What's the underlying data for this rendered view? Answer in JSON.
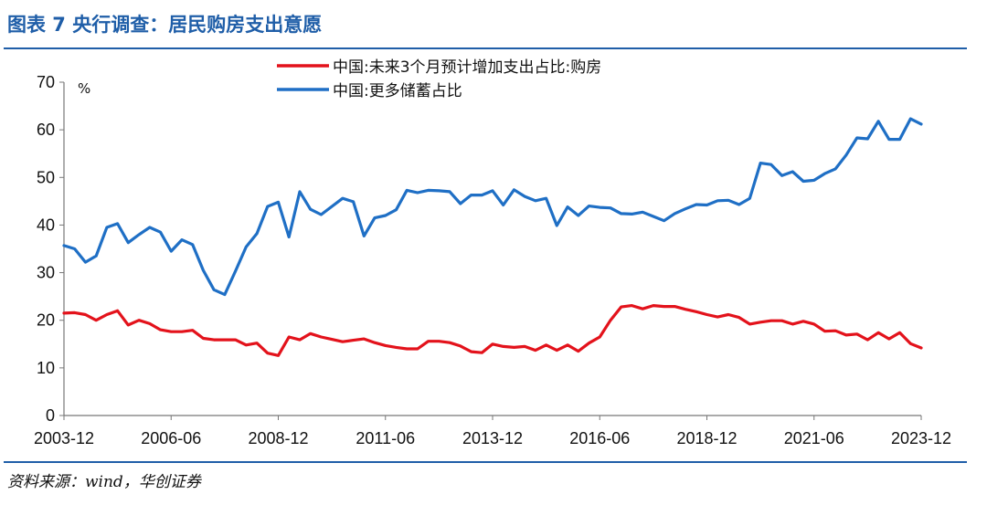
{
  "figure": {
    "title": "图表 7   央行调查：居民购房支出意愿",
    "source": "资料来源：wind，华创证券"
  },
  "colors": {
    "title_blue": "#1f5ea8",
    "rule_blue": "#1f5ea8",
    "series_red": "#e3121b",
    "series_blue": "#1f6fc5"
  },
  "chart_data": {
    "type": "line",
    "title": "",
    "xlabel": "",
    "ylabel": "%",
    "ylim": [
      0,
      70
    ],
    "yticks": [
      0,
      10,
      20,
      30,
      40,
      50,
      60,
      70
    ],
    "x_tick_labels": [
      "2003-12",
      "2006-06",
      "2008-12",
      "2011-06",
      "2013-12",
      "2016-06",
      "2018-12",
      "2021-06",
      "2023-12"
    ],
    "grid": false,
    "legend_position": "top",
    "x_start": "2003-12",
    "x_end": "2023-12",
    "series": [
      {
        "name": "中国:未来3个月预计增加支出占比:购房",
        "color": "#e3121b",
        "points": [
          [
            "2003-12",
            21.5
          ],
          [
            "2004-03",
            21.6
          ],
          [
            "2004-06",
            21.2
          ],
          [
            "2004-09",
            20.0
          ],
          [
            "2004-12",
            21.2
          ],
          [
            "2005-03",
            22.0
          ],
          [
            "2005-06",
            19.0
          ],
          [
            "2005-09",
            20.0
          ],
          [
            "2005-12",
            19.3
          ],
          [
            "2006-03",
            18.0
          ],
          [
            "2006-06",
            17.6
          ],
          [
            "2006-09",
            17.6
          ],
          [
            "2006-12",
            17.9
          ],
          [
            "2007-03",
            16.2
          ],
          [
            "2007-06",
            15.9
          ],
          [
            "2007-09",
            15.9
          ],
          [
            "2007-12",
            15.9
          ],
          [
            "2008-03",
            14.8
          ],
          [
            "2008-06",
            15.2
          ],
          [
            "2008-09",
            13.1
          ],
          [
            "2008-12",
            12.6
          ],
          [
            "2009-03",
            16.5
          ],
          [
            "2009-06",
            15.9
          ],
          [
            "2009-09",
            17.2
          ],
          [
            "2009-12",
            16.5
          ],
          [
            "2010-03",
            16.0
          ],
          [
            "2010-06",
            15.5
          ],
          [
            "2010-09",
            15.8
          ],
          [
            "2010-12",
            16.1
          ],
          [
            "2011-03",
            15.3
          ],
          [
            "2011-06",
            14.7
          ],
          [
            "2011-09",
            14.3
          ],
          [
            "2011-12",
            14.0
          ],
          [
            "2012-03",
            14.0
          ],
          [
            "2012-06",
            15.6
          ],
          [
            "2012-09",
            15.6
          ],
          [
            "2012-12",
            15.3
          ],
          [
            "2013-03",
            14.6
          ],
          [
            "2013-06",
            13.4
          ],
          [
            "2013-09",
            13.2
          ],
          [
            "2013-12",
            15.0
          ],
          [
            "2014-03",
            14.5
          ],
          [
            "2014-06",
            14.3
          ],
          [
            "2014-09",
            14.5
          ],
          [
            "2014-12",
            13.7
          ],
          [
            "2015-03",
            14.8
          ],
          [
            "2015-06",
            13.7
          ],
          [
            "2015-09",
            14.8
          ],
          [
            "2015-12",
            13.5
          ],
          [
            "2016-03",
            15.2
          ],
          [
            "2016-06",
            16.5
          ],
          [
            "2016-09",
            20.0
          ],
          [
            "2016-12",
            22.8
          ],
          [
            "2017-03",
            23.1
          ],
          [
            "2017-06",
            22.4
          ],
          [
            "2017-09",
            23.1
          ],
          [
            "2017-12",
            22.9
          ],
          [
            "2018-03",
            22.9
          ],
          [
            "2018-06",
            22.3
          ],
          [
            "2018-09",
            21.8
          ],
          [
            "2018-12",
            21.2
          ],
          [
            "2019-03",
            20.7
          ],
          [
            "2019-06",
            21.2
          ],
          [
            "2019-09",
            20.6
          ],
          [
            "2019-12",
            19.2
          ],
          [
            "2020-03",
            19.6
          ],
          [
            "2020-06",
            19.9
          ],
          [
            "2020-09",
            19.9
          ],
          [
            "2020-12",
            19.2
          ],
          [
            "2021-03",
            19.8
          ],
          [
            "2021-06",
            19.2
          ],
          [
            "2021-09",
            17.7
          ],
          [
            "2021-12",
            17.8
          ],
          [
            "2022-03",
            16.9
          ],
          [
            "2022-06",
            17.1
          ],
          [
            "2022-09",
            15.9
          ],
          [
            "2022-12",
            17.4
          ],
          [
            "2023-03",
            16.1
          ],
          [
            "2023-06",
            17.4
          ],
          [
            "2023-09",
            15.1
          ],
          [
            "2023-12",
            14.2
          ]
        ]
      },
      {
        "name": "中国:更多储蓄占比",
        "color": "#1f6fc5",
        "points": [
          [
            "2003-12",
            35.7
          ],
          [
            "2004-03",
            35.0
          ],
          [
            "2004-06",
            32.2
          ],
          [
            "2004-09",
            33.5
          ],
          [
            "2004-12",
            39.5
          ],
          [
            "2005-03",
            40.3
          ],
          [
            "2005-06",
            36.3
          ],
          [
            "2005-09",
            38.0
          ],
          [
            "2005-12",
            39.5
          ],
          [
            "2006-03",
            38.5
          ],
          [
            "2006-06",
            34.5
          ],
          [
            "2006-09",
            36.9
          ],
          [
            "2006-12",
            35.9
          ],
          [
            "2007-03",
            30.5
          ],
          [
            "2007-06",
            26.4
          ],
          [
            "2007-09",
            25.4
          ],
          [
            "2007-12",
            30.3
          ],
          [
            "2008-03",
            35.4
          ],
          [
            "2008-06",
            38.2
          ],
          [
            "2008-09",
            43.9
          ],
          [
            "2008-12",
            44.8
          ],
          [
            "2009-03",
            37.5
          ],
          [
            "2009-06",
            47.0
          ],
          [
            "2009-09",
            43.3
          ],
          [
            "2009-12",
            42.2
          ],
          [
            "2010-03",
            43.9
          ],
          [
            "2010-06",
            45.6
          ],
          [
            "2010-09",
            44.9
          ],
          [
            "2010-12",
            37.7
          ],
          [
            "2011-03",
            41.5
          ],
          [
            "2011-06",
            42.0
          ],
          [
            "2011-09",
            43.2
          ],
          [
            "2011-12",
            47.3
          ],
          [
            "2012-03",
            46.8
          ],
          [
            "2012-06",
            47.3
          ],
          [
            "2012-09",
            47.2
          ],
          [
            "2012-12",
            47.0
          ],
          [
            "2013-03",
            44.5
          ],
          [
            "2013-06",
            46.3
          ],
          [
            "2013-09",
            46.3
          ],
          [
            "2013-12",
            47.2
          ],
          [
            "2014-03",
            44.2
          ],
          [
            "2014-06",
            47.4
          ],
          [
            "2014-09",
            46.0
          ],
          [
            "2014-12",
            45.1
          ],
          [
            "2015-03",
            45.6
          ],
          [
            "2015-06",
            39.9
          ],
          [
            "2015-09",
            43.8
          ],
          [
            "2015-12",
            42.0
          ],
          [
            "2016-03",
            44.0
          ],
          [
            "2016-06",
            43.7
          ],
          [
            "2016-09",
            43.6
          ],
          [
            "2016-12",
            42.4
          ],
          [
            "2017-03",
            42.3
          ],
          [
            "2017-06",
            42.7
          ],
          [
            "2017-09",
            41.8
          ],
          [
            "2017-12",
            40.9
          ],
          [
            "2018-03",
            42.4
          ],
          [
            "2018-06",
            43.4
          ],
          [
            "2018-09",
            44.3
          ],
          [
            "2018-12",
            44.2
          ],
          [
            "2019-03",
            45.1
          ],
          [
            "2019-06",
            45.2
          ],
          [
            "2019-09",
            44.3
          ],
          [
            "2019-12",
            45.6
          ],
          [
            "2020-03",
            53.0
          ],
          [
            "2020-06",
            52.7
          ],
          [
            "2020-09",
            50.4
          ],
          [
            "2020-12",
            51.2
          ],
          [
            "2021-03",
            49.2
          ],
          [
            "2021-06",
            49.4
          ],
          [
            "2021-09",
            50.8
          ],
          [
            "2021-12",
            51.8
          ],
          [
            "2022-03",
            54.7
          ],
          [
            "2022-06",
            58.3
          ],
          [
            "2022-09",
            58.1
          ],
          [
            "2022-12",
            61.8
          ],
          [
            "2023-03",
            58.0
          ],
          [
            "2023-06",
            58.0
          ],
          [
            "2023-09",
            62.3
          ],
          [
            "2023-12",
            61.2
          ]
        ]
      }
    ]
  }
}
